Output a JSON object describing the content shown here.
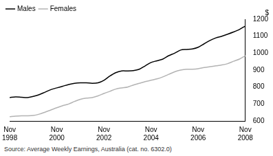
{
  "chart_data": {
    "type": "line",
    "ylabel": "$",
    "source": "Source: Average Weekly Earnings, Australia (cat. no. 6302.0)",
    "categories": [
      "Nov 1998",
      null,
      null,
      null,
      null,
      null,
      null,
      null,
      "Nov 2000",
      null,
      null,
      null,
      null,
      null,
      null,
      null,
      "Nov 2002",
      null,
      null,
      null,
      null,
      null,
      null,
      null,
      "Nov 2004",
      null,
      null,
      null,
      null,
      null,
      null,
      null,
      "Nov 2006",
      null,
      null,
      null,
      null,
      null,
      null,
      null,
      "Nov 2008"
    ],
    "series": [
      {
        "name": "Males",
        "color": "#000000",
        "values": [
          738,
          742,
          740,
          738,
          745,
          755,
          770,
          785,
          795,
          805,
          815,
          822,
          825,
          825,
          822,
          825,
          840,
          865,
          885,
          895,
          895,
          897,
          905,
          925,
          945,
          955,
          965,
          985,
          1000,
          1018,
          1022,
          1025,
          1035,
          1055,
          1075,
          1090,
          1100,
          1112,
          1125,
          1140,
          1160
        ]
      },
      {
        "name": "Females",
        "color": "#b3b3b3",
        "values": [
          625,
          628,
          630,
          630,
          632,
          640,
          652,
          665,
          678,
          690,
          700,
          715,
          728,
          735,
          738,
          748,
          762,
          775,
          788,
          795,
          800,
          812,
          822,
          832,
          840,
          848,
          860,
          875,
          890,
          900,
          905,
          905,
          908,
          915,
          920,
          925,
          930,
          938,
          952,
          965,
          985
        ]
      }
    ],
    "ylim": [
      600,
      1200
    ],
    "yticks": [
      600,
      700,
      800,
      900,
      1000,
      1100,
      1200
    ],
    "grid": false,
    "legend": "top-left"
  }
}
